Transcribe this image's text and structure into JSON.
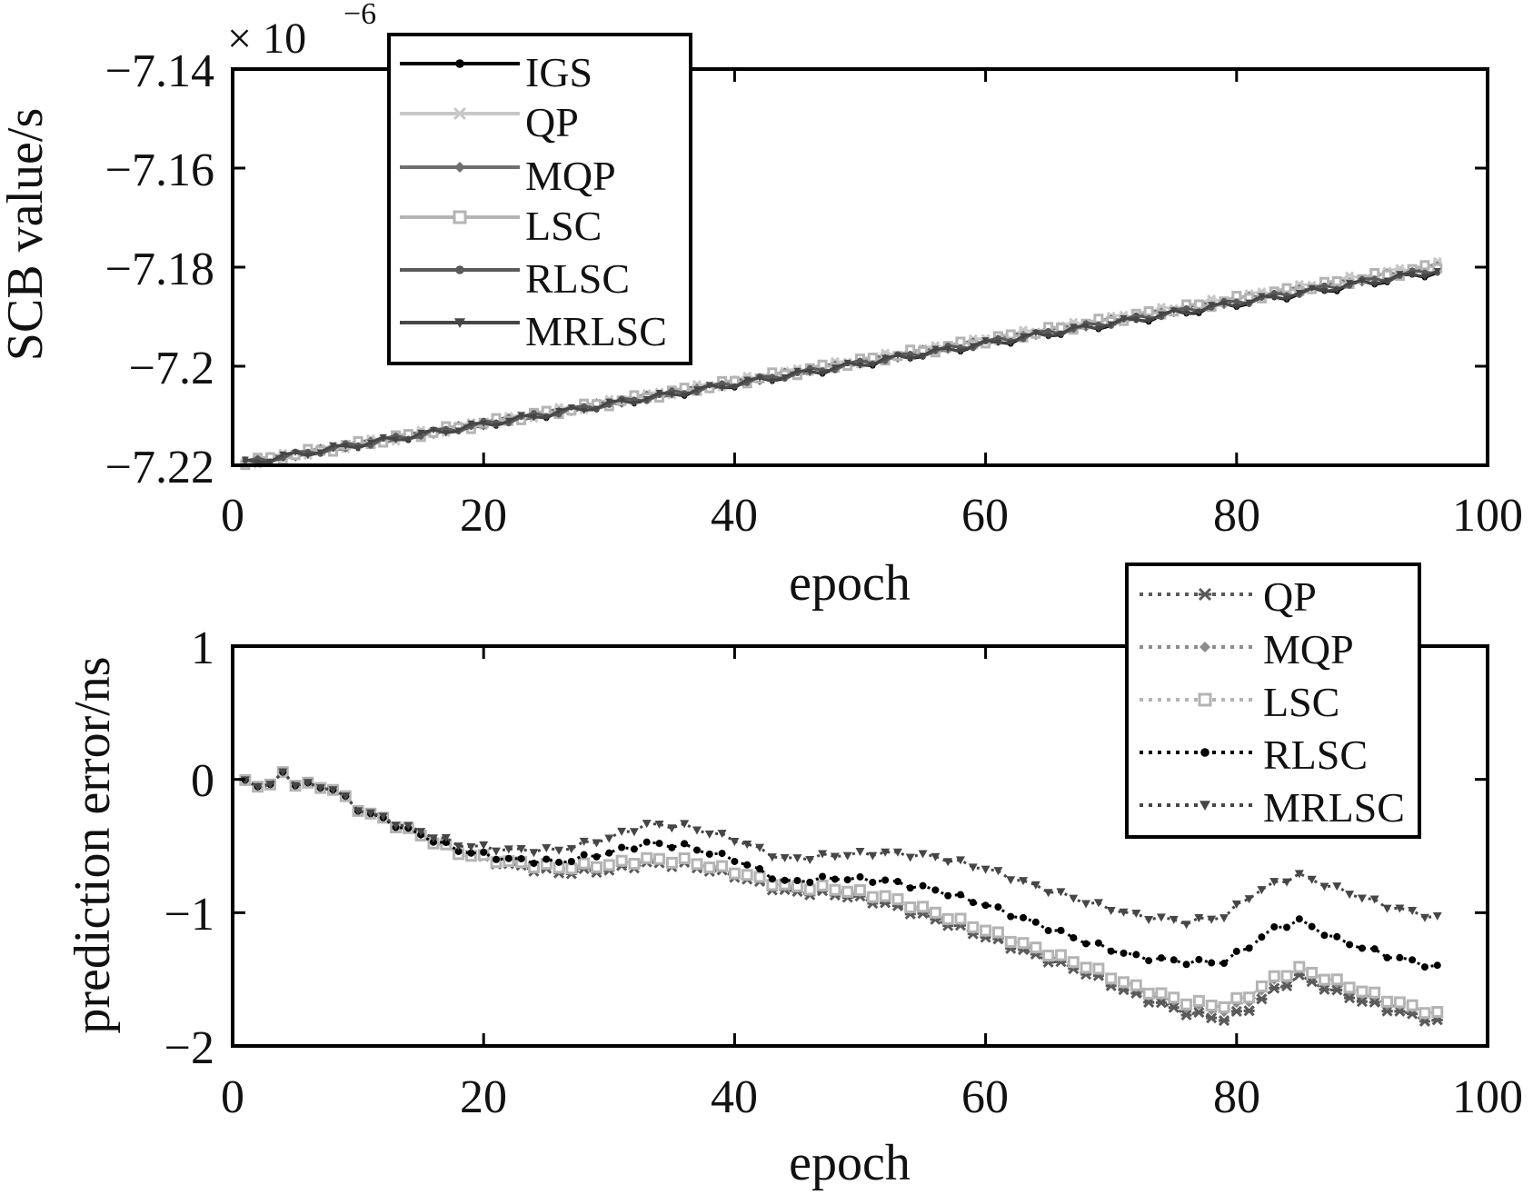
{
  "chart_data": [
    {
      "type": "line",
      "panel": "top",
      "xlabel": "epoch",
      "ylabel": "SCB value/s",
      "exponent_label": {
        "base": "× 10",
        "power": "−6"
      },
      "xlim": [
        0,
        100
      ],
      "ylim": [
        -7.22,
        -7.14
      ],
      "xticks": [
        0,
        20,
        40,
        60,
        80,
        100
      ],
      "xtick_labels": [
        "0",
        "20",
        "40",
        "60",
        "80",
        "100"
      ],
      "yticks": [
        -7.14,
        -7.16,
        -7.18,
        -7.2,
        -7.22
      ],
      "ytick_labels": [
        "−7.14",
        "−7.16",
        "−7.18",
        "−7.2",
        "−7.22"
      ],
      "legend_position": "top-left",
      "x_range": [
        1,
        96
      ],
      "series": [
        {
          "name": "IGS",
          "color": "#000000",
          "marker": "dot",
          "start": -7.2195,
          "end": -7.181
        },
        {
          "name": "QP",
          "color": "#c8c8c8",
          "marker": "star",
          "start": -7.2195,
          "end": -7.1795
        },
        {
          "name": "MQP",
          "color": "#707070",
          "marker": "diamond",
          "start": -7.2195,
          "end": -7.18
        },
        {
          "name": "LSC",
          "color": "#b4b4b4",
          "marker": "square",
          "start": -7.2195,
          "end": -7.1798
        },
        {
          "name": "RLSC",
          "color": "#5a5a5a",
          "marker": "dot",
          "start": -7.2195,
          "end": -7.1805
        },
        {
          "name": "MRLSC",
          "color": "#464646",
          "marker": "triangle",
          "start": -7.2195,
          "end": -7.1808
        }
      ]
    },
    {
      "type": "line",
      "panel": "bottom",
      "xlabel": "epoch",
      "ylabel": "prediction error/ns",
      "xlim": [
        0,
        100
      ],
      "ylim": [
        -2,
        1
      ],
      "xticks": [
        0,
        20,
        40,
        60,
        80,
        100
      ],
      "xtick_labels": [
        "0",
        "20",
        "40",
        "60",
        "80",
        "100"
      ],
      "yticks": [
        1,
        0,
        -1,
        -2
      ],
      "ytick_labels": [
        "1",
        "0",
        "−1",
        "−2"
      ],
      "legend_position": "top-right",
      "x_range": [
        1,
        96
      ],
      "series": [
        {
          "name": "QP",
          "color": "#5a5a5a",
          "marker": "star",
          "knots": [
            [
              1,
              -0.02
            ],
            [
              3,
              -0.05
            ],
            [
              4,
              0.05
            ],
            [
              5,
              -0.03
            ],
            [
              8,
              -0.07
            ],
            [
              10,
              -0.22
            ],
            [
              14,
              -0.38
            ],
            [
              18,
              -0.55
            ],
            [
              22,
              -0.64
            ],
            [
              26,
              -0.7
            ],
            [
              30,
              -0.68
            ],
            [
              33,
              -0.63
            ],
            [
              36,
              -0.64
            ],
            [
              40,
              -0.72
            ],
            [
              44,
              -0.84
            ],
            [
              48,
              -0.86
            ],
            [
              52,
              -0.93
            ],
            [
              56,
              -1.05
            ],
            [
              60,
              -1.18
            ],
            [
              64,
              -1.32
            ],
            [
              68,
              -1.45
            ],
            [
              72,
              -1.62
            ],
            [
              76,
              -1.75
            ],
            [
              79,
              -1.8
            ],
            [
              81,
              -1.72
            ],
            [
              83,
              -1.58
            ],
            [
              85,
              -1.48
            ],
            [
              88,
              -1.6
            ],
            [
              92,
              -1.72
            ],
            [
              96,
              -1.82
            ]
          ]
        },
        {
          "name": "MQP",
          "color": "#8c8c8c",
          "marker": "diamond",
          "knots": [
            [
              1,
              -0.02
            ],
            [
              3,
              -0.05
            ],
            [
              4,
              0.05
            ],
            [
              5,
              -0.03
            ],
            [
              8,
              -0.07
            ],
            [
              10,
              -0.22
            ],
            [
              14,
              -0.38
            ],
            [
              18,
              -0.55
            ],
            [
              22,
              -0.63
            ],
            [
              26,
              -0.68
            ],
            [
              30,
              -0.66
            ],
            [
              33,
              -0.61
            ],
            [
              36,
              -0.62
            ],
            [
              40,
              -0.7
            ],
            [
              44,
              -0.82
            ],
            [
              48,
              -0.84
            ],
            [
              52,
              -0.9
            ],
            [
              56,
              -1.02
            ],
            [
              60,
              -1.15
            ],
            [
              64,
              -1.29
            ],
            [
              68,
              -1.42
            ],
            [
              72,
              -1.58
            ],
            [
              76,
              -1.7
            ],
            [
              79,
              -1.74
            ],
            [
              81,
              -1.66
            ],
            [
              83,
              -1.52
            ],
            [
              85,
              -1.44
            ],
            [
              88,
              -1.55
            ],
            [
              92,
              -1.68
            ],
            [
              96,
              -1.78
            ]
          ]
        },
        {
          "name": "LSC",
          "color": "#b4b4b4",
          "marker": "square",
          "knots": [
            [
              1,
              -0.02
            ],
            [
              3,
              -0.05
            ],
            [
              4,
              0.05
            ],
            [
              5,
              -0.03
            ],
            [
              8,
              -0.07
            ],
            [
              10,
              -0.22
            ],
            [
              14,
              -0.38
            ],
            [
              18,
              -0.55
            ],
            [
              22,
              -0.62
            ],
            [
              26,
              -0.66
            ],
            [
              30,
              -0.64
            ],
            [
              33,
              -0.6
            ],
            [
              36,
              -0.61
            ],
            [
              40,
              -0.69
            ],
            [
              44,
              -0.8
            ],
            [
              48,
              -0.82
            ],
            [
              52,
              -0.88
            ],
            [
              56,
              -1.0
            ],
            [
              60,
              -1.13
            ],
            [
              64,
              -1.27
            ],
            [
              68,
              -1.4
            ],
            [
              72,
              -1.56
            ],
            [
              76,
              -1.67
            ],
            [
              79,
              -1.7
            ],
            [
              81,
              -1.62
            ],
            [
              83,
              -1.49
            ],
            [
              85,
              -1.42
            ],
            [
              88,
              -1.52
            ],
            [
              92,
              -1.65
            ],
            [
              96,
              -1.76
            ]
          ]
        },
        {
          "name": "RLSC",
          "color": "#000000",
          "marker": "dot",
          "knots": [
            [
              1,
              -0.02
            ],
            [
              3,
              -0.05
            ],
            [
              4,
              0.05
            ],
            [
              5,
              -0.03
            ],
            [
              8,
              -0.07
            ],
            [
              10,
              -0.22
            ],
            [
              14,
              -0.38
            ],
            [
              18,
              -0.53
            ],
            [
              22,
              -0.6
            ],
            [
              26,
              -0.62
            ],
            [
              30,
              -0.55
            ],
            [
              33,
              -0.48
            ],
            [
              36,
              -0.5
            ],
            [
              40,
              -0.6
            ],
            [
              44,
              -0.77
            ],
            [
              48,
              -0.74
            ],
            [
              52,
              -0.76
            ],
            [
              56,
              -0.83
            ],
            [
              60,
              -0.94
            ],
            [
              64,
              -1.08
            ],
            [
              68,
              -1.22
            ],
            [
              72,
              -1.33
            ],
            [
              76,
              -1.37
            ],
            [
              79,
              -1.37
            ],
            [
              81,
              -1.25
            ],
            [
              83,
              -1.12
            ],
            [
              85,
              -1.06
            ],
            [
              88,
              -1.2
            ],
            [
              92,
              -1.32
            ],
            [
              96,
              -1.41
            ]
          ]
        },
        {
          "name": "MRLSC",
          "color": "#464646",
          "marker": "triangle",
          "knots": [
            [
              1,
              -0.02
            ],
            [
              3,
              -0.05
            ],
            [
              4,
              0.05
            ],
            [
              5,
              -0.03
            ],
            [
              8,
              -0.07
            ],
            [
              10,
              -0.22
            ],
            [
              14,
              -0.36
            ],
            [
              18,
              -0.49
            ],
            [
              22,
              -0.53
            ],
            [
              26,
              -0.53
            ],
            [
              30,
              -0.44
            ],
            [
              33,
              -0.34
            ],
            [
              36,
              -0.35
            ],
            [
              40,
              -0.45
            ],
            [
              44,
              -0.6
            ],
            [
              48,
              -0.57
            ],
            [
              52,
              -0.55
            ],
            [
              56,
              -0.58
            ],
            [
              60,
              -0.67
            ],
            [
              64,
              -0.8
            ],
            [
              68,
              -0.92
            ],
            [
              72,
              -1.02
            ],
            [
              76,
              -1.07
            ],
            [
              79,
              -1.03
            ],
            [
              81,
              -0.88
            ],
            [
              83,
              -0.78
            ],
            [
              85,
              -0.72
            ],
            [
              88,
              -0.82
            ],
            [
              92,
              -0.95
            ],
            [
              96,
              -1.04
            ]
          ]
        }
      ]
    }
  ]
}
